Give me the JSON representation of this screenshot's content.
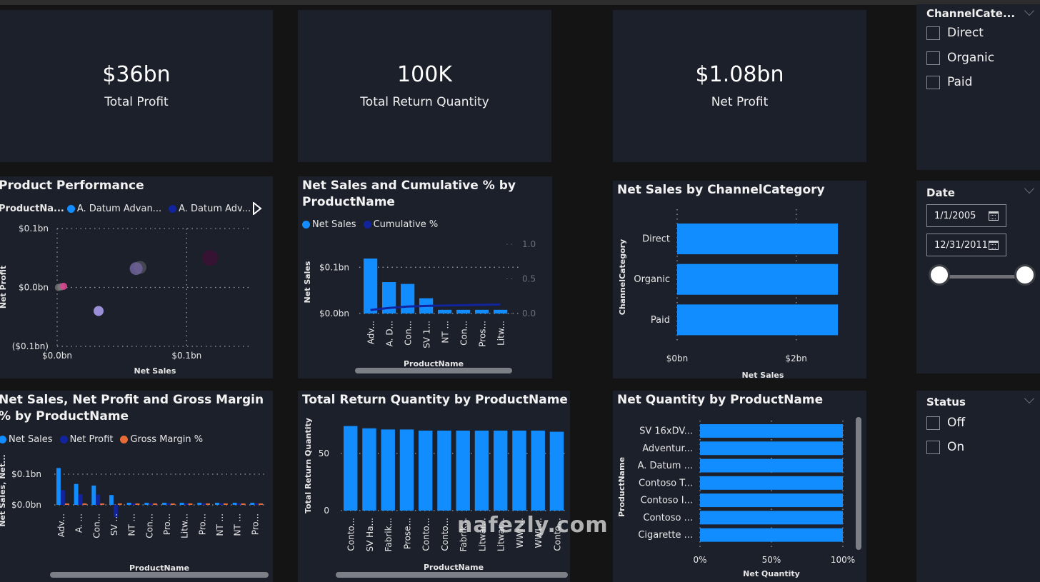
{
  "kpis": [
    {
      "value": "$36bn",
      "label": "Total Profit"
    },
    {
      "value": "100K",
      "label": "Total Return Quantity"
    },
    {
      "value": "$1.08bn",
      "label": "Net Profit"
    }
  ],
  "slicers": {
    "channel": {
      "title": "ChannelCate...",
      "options": [
        "Direct",
        "Organic",
        "Paid"
      ]
    },
    "date": {
      "title": "Date",
      "start": "1/1/2005",
      "end": "12/31/2011",
      "range_fraction": [
        0,
        1
      ]
    },
    "status": {
      "title": "Status",
      "options": [
        "Off",
        "On"
      ]
    }
  },
  "watermark": "nafezly.com",
  "chart_data": [
    {
      "id": "product-performance",
      "type": "scatter",
      "title": "Product Performance",
      "legend_title": "ProductNa...",
      "legend": [
        {
          "name": "A. Datum Advan...",
          "color": "#118dff"
        },
        {
          "name": "A. Datum Adv...",
          "color": "#12239e"
        }
      ],
      "xlabel": "Net Sales",
      "ylabel": "Net Profit",
      "xticks": [
        "$0.0bn",
        "$0.1bn"
      ],
      "yticks": [
        "$0.1bn",
        "$0.0bn",
        "($0.1bn)"
      ],
      "xlim": [
        0,
        0.15
      ],
      "ylim": [
        -0.1,
        0.1
      ],
      "points": [
        {
          "x": 0.001,
          "y": 0.0,
          "r": 5,
          "color": "#6b6b6b"
        },
        {
          "x": 0.003,
          "y": 0.001,
          "r": 5,
          "color": "#7a7a7a"
        },
        {
          "x": 0.005,
          "y": 0.002,
          "r": 5,
          "color": "#d9468f"
        },
        {
          "x": 0.032,
          "y": -0.04,
          "r": 7,
          "color": "#a99bea"
        },
        {
          "x": 0.064,
          "y": 0.034,
          "r": 9,
          "color": "#4a4a55"
        },
        {
          "x": 0.061,
          "y": 0.032,
          "r": 9,
          "color": "#6a5f95"
        },
        {
          "x": 0.118,
          "y": 0.05,
          "r": 11,
          "color": "#3a1233"
        }
      ]
    },
    {
      "id": "net-sales-cumulative",
      "type": "bar",
      "title": "Net Sales and Cumulative % by ProductName",
      "legend": [
        {
          "name": "Net Sales",
          "color": "#118dff"
        },
        {
          "name": "Cumulative %",
          "color": "#12239e"
        }
      ],
      "categories": [
        "Adv...",
        "A. D...",
        "Con...",
        "SV 1...",
        "NT ...",
        "Con...",
        "Pros...",
        "Litw..."
      ],
      "series": [
        {
          "name": "Net Sales",
          "values": [
            0.119,
            0.068,
            0.064,
            0.033,
            0.008,
            0.008,
            0.008,
            0.008
          ]
        },
        {
          "name": "Cumulative %",
          "values": [
            0.05,
            0.08,
            0.1,
            0.11,
            0.115,
            0.12,
            0.125,
            0.13
          ]
        }
      ],
      "xlabel": "ProductName",
      "ylabel": "Net Sales",
      "yticks": [
        "$0.0bn",
        "$0.1bn"
      ],
      "y2ticks": [
        "0.0",
        "0.5",
        "1.0"
      ],
      "ylim": [
        0,
        0.15
      ],
      "y2lim": [
        0,
        1.0
      ]
    },
    {
      "id": "net-sales-channel",
      "type": "bar",
      "title": "Net Sales by ChannelCategory",
      "categories": [
        "Direct",
        "Organic",
        "Paid"
      ],
      "values": [
        2.7,
        2.7,
        2.7
      ],
      "xlabel": "Net Sales",
      "ylabel": "ChannelCategory",
      "xticks": [
        "$0bn",
        "$2bn"
      ],
      "xlim": [
        0,
        3
      ]
    },
    {
      "id": "sales-profit-margin",
      "type": "bar",
      "title": "Net Sales, Net Profit and Gross Margin % by ProductName",
      "legend": [
        {
          "name": "Net Sales",
          "color": "#118dff"
        },
        {
          "name": "Net Profit",
          "color": "#12239e"
        },
        {
          "name": "Gross Margin %",
          "color": "#e66c37"
        }
      ],
      "categories": [
        "Adv...",
        "A. ...",
        "Con...",
        "SV ...",
        "NT ...",
        "Con...",
        "Pro...",
        "Litw...",
        "Pro...",
        "NT ...",
        "NT ...",
        "Pro..."
      ],
      "series": [
        {
          "name": "Net Sales",
          "values": [
            0.12,
            0.068,
            0.063,
            0.032,
            0.007,
            0.007,
            0.007,
            0.007,
            0.007,
            0.007,
            0.007,
            0.007
          ]
        },
        {
          "name": "Net Profit",
          "values": [
            0.048,
            0.034,
            0.033,
            -0.04,
            0.003,
            0.003,
            0.003,
            0.003,
            0.003,
            0.003,
            0.003,
            0.003
          ]
        },
        {
          "name": "Gross Margin %",
          "values": [
            0.003,
            0.003,
            0.003,
            0.003,
            0.003,
            0.003,
            0.003,
            0.003,
            0.003,
            0.003,
            0.003,
            0.003
          ]
        }
      ],
      "xlabel": "ProductName",
      "ylabel": "Net Sales, Net...",
      "yticks": [
        "$0.0bn",
        "$0.1bn"
      ],
      "ylim": [
        -0.05,
        0.15
      ]
    },
    {
      "id": "total-return-quantity",
      "type": "bar",
      "title": "Total Return Quantity by ProductName",
      "categories": [
        "Conto...",
        "SV Ha...",
        "Fabrik...",
        "Prose...",
        "Conto...",
        "Conto...",
        "Fabrik...",
        "Litwar...",
        "Litwar...",
        "WWI ...",
        "WWI ...",
        "Conto..."
      ],
      "values": [
        74,
        72,
        71,
        71,
        70,
        70,
        70,
        70,
        70,
        70,
        70,
        69
      ],
      "xlabel": "ProductName",
      "ylabel": "Total Return Quantity",
      "yticks": [
        "0",
        "50"
      ],
      "ylim": [
        0,
        80
      ]
    },
    {
      "id": "net-quantity",
      "type": "bar",
      "title": "Net Quantity by ProductName",
      "categories": [
        "SV 16xDV...",
        "Adventur...",
        "A. Datum ...",
        "Contoso T...",
        "Contoso I...",
        "Contoso ...",
        "Cigarette ..."
      ],
      "values": [
        1.0,
        1.0,
        1.0,
        1.0,
        1.0,
        1.0,
        1.0
      ],
      "xlabel": "Net Quantity",
      "ylabel": "ProductName",
      "xticks": [
        "0%",
        "50%",
        "100%"
      ],
      "xlim": [
        0,
        1
      ]
    }
  ]
}
